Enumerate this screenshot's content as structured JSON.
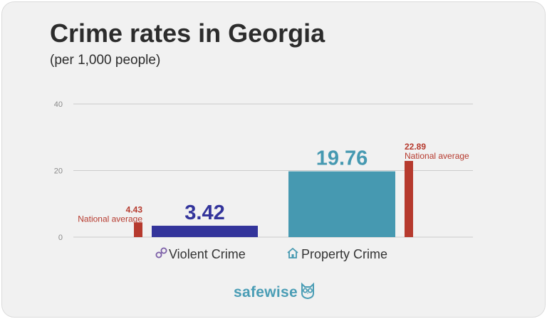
{
  "title": "Crime rates in Georgia",
  "subtitle": "(per 1,000 people)",
  "colors": {
    "violent": "#33349b",
    "property": "#4699b1",
    "national": "#b63a2e",
    "grid": "#cccccc",
    "axis_text": "#8a8a8a",
    "category_text": "#333333"
  },
  "chart_data": {
    "type": "bar",
    "title": "Crime rates in Georgia",
    "subtitle": "(per 1,000 people)",
    "ylim": [
      0,
      40
    ],
    "yticks": [
      "0",
      "20",
      "40"
    ],
    "grid": true,
    "categories": [
      "Violent Crime",
      "Property Crime"
    ],
    "category_icons": [
      "handcuffs-icon",
      "house-icon"
    ],
    "values": [
      3.42,
      19.76
    ],
    "value_labels": [
      "3.42",
      "19.76"
    ],
    "national_average": {
      "label": "National average",
      "values": [
        4.43,
        22.89
      ],
      "value_labels": [
        "4.43",
        "22.89"
      ]
    }
  },
  "brand": {
    "name": "safewise",
    "icon": "owl-icon"
  }
}
